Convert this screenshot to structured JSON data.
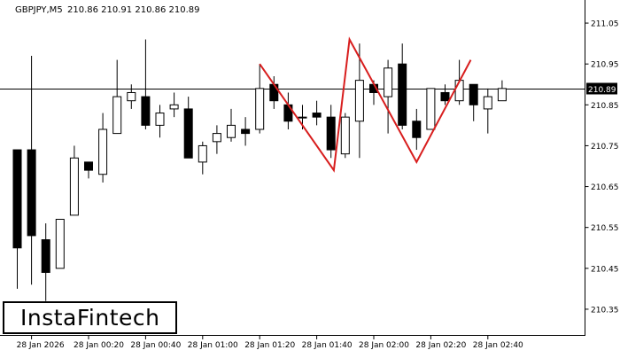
{
  "header": {
    "symbol": "GBPJPY,M5",
    "ohlc": "210.86 210.91 210.86 210.89"
  },
  "logo": {
    "text": "InstaFintech"
  },
  "colors": {
    "bull": "#ffffff",
    "bear": "#000000",
    "pattern": "#d81e1e",
    "price_line": "#000000",
    "price_tag_bg": "#000000",
    "price_tag_text": "#ffffff"
  },
  "chart_data": {
    "type": "candlestick",
    "y_axis": {
      "ylim": [
        210.3,
        211.1
      ],
      "ticks": [
        "211.05",
        "210.95",
        "210.85",
        "210.75",
        "210.65",
        "210.55",
        "210.45",
        "210.35"
      ]
    },
    "x_axis": {
      "ticks": [
        {
          "label": "28 Jan 2026",
          "index": 1
        },
        {
          "label": "28 Jan 00:20",
          "index": 5
        },
        {
          "label": "28 Jan 00:40",
          "index": 9
        },
        {
          "label": "28 Jan 01:00",
          "index": 13
        },
        {
          "label": "28 Jan 01:20",
          "index": 17
        },
        {
          "label": "28 Jan 01:40",
          "index": 21
        },
        {
          "label": "28 Jan 02:00",
          "index": 25
        },
        {
          "label": "28 Jan 02:20",
          "index": 29
        },
        {
          "label": "28 Jan 02:40",
          "index": 33
        }
      ]
    },
    "current_price": {
      "value": 210.89,
      "label": "210.89"
    },
    "candles": [
      {
        "o": 210.74,
        "h": 210.74,
        "l": 210.4,
        "c": 210.5
      },
      {
        "o": 210.74,
        "h": 210.97,
        "l": 210.41,
        "c": 210.53
      },
      {
        "o": 210.52,
        "h": 210.56,
        "l": 210.37,
        "c": 210.44
      },
      {
        "o": 210.45,
        "h": 210.57,
        "l": 210.45,
        "c": 210.57
      },
      {
        "o": 210.58,
        "h": 210.75,
        "l": 210.58,
        "c": 210.72
      },
      {
        "o": 210.71,
        "h": 210.71,
        "l": 210.67,
        "c": 210.69
      },
      {
        "o": 210.68,
        "h": 210.83,
        "l": 210.66,
        "c": 210.79
      },
      {
        "o": 210.78,
        "h": 210.96,
        "l": 210.78,
        "c": 210.87
      },
      {
        "o": 210.86,
        "h": 210.9,
        "l": 210.84,
        "c": 210.88
      },
      {
        "o": 210.87,
        "h": 211.01,
        "l": 210.79,
        "c": 210.8
      },
      {
        "o": 210.8,
        "h": 210.85,
        "l": 210.77,
        "c": 210.83
      },
      {
        "o": 210.84,
        "h": 210.88,
        "l": 210.82,
        "c": 210.85
      },
      {
        "o": 210.84,
        "h": 210.87,
        "l": 210.72,
        "c": 210.72
      },
      {
        "o": 210.71,
        "h": 210.76,
        "l": 210.68,
        "c": 210.75
      },
      {
        "o": 210.76,
        "h": 210.8,
        "l": 210.73,
        "c": 210.78
      },
      {
        "o": 210.77,
        "h": 210.84,
        "l": 210.76,
        "c": 210.8
      },
      {
        "o": 210.79,
        "h": 210.82,
        "l": 210.75,
        "c": 210.78
      },
      {
        "o": 210.79,
        "h": 210.95,
        "l": 210.78,
        "c": 210.89
      },
      {
        "o": 210.9,
        "h": 210.92,
        "l": 210.84,
        "c": 210.86
      },
      {
        "o": 210.85,
        "h": 210.88,
        "l": 210.79,
        "c": 210.81
      },
      {
        "o": 210.82,
        "h": 210.85,
        "l": 210.79,
        "c": 210.82
      },
      {
        "o": 210.83,
        "h": 210.86,
        "l": 210.8,
        "c": 210.82
      },
      {
        "o": 210.82,
        "h": 210.85,
        "l": 210.72,
        "c": 210.74
      },
      {
        "o": 210.73,
        "h": 210.83,
        "l": 210.72,
        "c": 210.82
      },
      {
        "o": 210.81,
        "h": 211.0,
        "l": 210.72,
        "c": 210.91
      },
      {
        "o": 210.9,
        "h": 210.91,
        "l": 210.85,
        "c": 210.88
      },
      {
        "o": 210.87,
        "h": 210.96,
        "l": 210.78,
        "c": 210.94
      },
      {
        "o": 210.95,
        "h": 211.0,
        "l": 210.79,
        "c": 210.8
      },
      {
        "o": 210.81,
        "h": 210.84,
        "l": 210.74,
        "c": 210.77
      },
      {
        "o": 210.79,
        "h": 210.89,
        "l": 210.79,
        "c": 210.89
      },
      {
        "o": 210.88,
        "h": 210.9,
        "l": 210.85,
        "c": 210.86
      },
      {
        "o": 210.86,
        "h": 210.96,
        "l": 210.85,
        "c": 210.91
      },
      {
        "o": 210.9,
        "h": 210.9,
        "l": 210.81,
        "c": 210.85
      },
      {
        "o": 210.84,
        "h": 210.89,
        "l": 210.78,
        "c": 210.87
      },
      {
        "o": 210.86,
        "h": 210.91,
        "l": 210.86,
        "c": 210.89
      }
    ],
    "pattern": {
      "name": "",
      "points": [
        {
          "index": 17,
          "price": 210.95
        },
        {
          "index": 22.2,
          "price": 210.69
        },
        {
          "index": 23.3,
          "price": 211.01
        },
        {
          "index": 28,
          "price": 210.71
        },
        {
          "index": 31.8,
          "price": 210.96
        }
      ]
    }
  }
}
